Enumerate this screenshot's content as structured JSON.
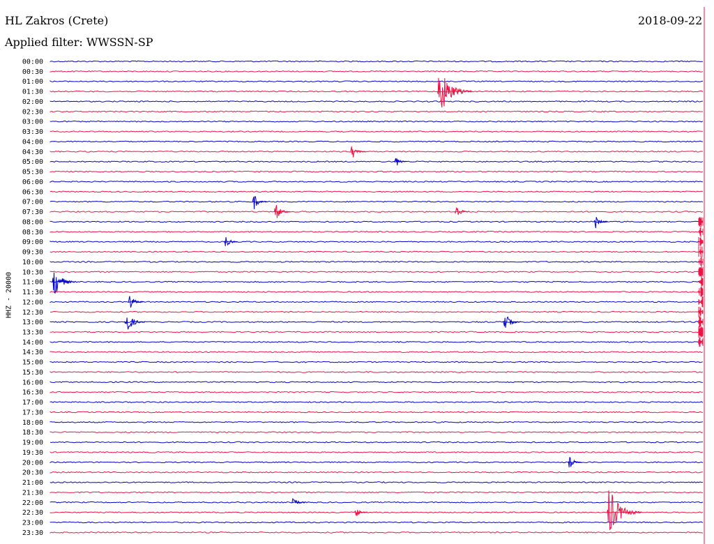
{
  "header": {
    "station": "HL Zakros (Crete)",
    "filter": "Applied filter: WWSSN-SP",
    "date": "2018-09-22"
  },
  "chart_data": {
    "type": "line",
    "title": "HL Zakros (Crete)",
    "subtitle": "Applied filter: WWSSN-SP",
    "date": "2018-09-22",
    "ylabel": "HHZ - 20000",
    "row_labels": [
      "00:00",
      "00:30",
      "01:00",
      "01:30",
      "02:00",
      "02:30",
      "03:00",
      "03:30",
      "04:00",
      "04:30",
      "05:00",
      "05:30",
      "06:00",
      "06:30",
      "07:00",
      "07:30",
      "08:00",
      "08:30",
      "09:00",
      "09:30",
      "10:00",
      "10:30",
      "11:00",
      "11:30",
      "12:00",
      "12:30",
      "13:00",
      "13:30",
      "14:00",
      "14:30",
      "15:00",
      "15:30",
      "16:00",
      "16:30",
      "17:00",
      "17:30",
      "18:00",
      "18:30",
      "19:00",
      "19:30",
      "20:00",
      "20:30",
      "21:00",
      "21:30",
      "22:00",
      "22:30",
      "23:00",
      "23:30"
    ],
    "row_minutes": 30,
    "series_colors": [
      "#0000cc",
      "#ee1144"
    ],
    "events": [
      {
        "row": "01:30",
        "minute": 17.8,
        "amplitude": 1.0
      },
      {
        "row": "22:30",
        "minute": 25.6,
        "amplitude": 1.0
      },
      {
        "row": "11:00",
        "minute": 0.1,
        "amplitude": 0.6
      },
      {
        "row": "13:00",
        "minute": 3.4,
        "amplitude": 0.5
      },
      {
        "row": "12:00",
        "minute": 3.6,
        "amplitude": 0.3
      },
      {
        "row": "13:00",
        "minute": 20.8,
        "amplitude": 0.4
      },
      {
        "row": "07:00",
        "minute": 9.3,
        "amplitude": 0.3
      },
      {
        "row": "07:30",
        "minute": 10.3,
        "amplitude": 0.35
      },
      {
        "row": "07:30",
        "minute": 18.6,
        "amplitude": 0.3
      },
      {
        "row": "08:00",
        "minute": 25.0,
        "amplitude": 0.25
      },
      {
        "row": "05:00",
        "minute": 15.8,
        "amplitude": 0.25
      },
      {
        "row": "04:30",
        "minute": 13.8,
        "amplitude": 0.3
      },
      {
        "row": "22:00",
        "minute": 11.1,
        "amplitude": 0.25
      },
      {
        "row": "20:00",
        "minute": 23.8,
        "amplitude": 0.25
      },
      {
        "row": "09:00",
        "minute": 8.0,
        "amplitude": 0.25
      },
      {
        "row": "22:30",
        "minute": 14.0,
        "amplitude": 0.2
      }
    ],
    "end_burst": {
      "from_row": "08:00",
      "to_row": "14:00",
      "minute": 30.0,
      "amplitude": 0.5
    }
  }
}
